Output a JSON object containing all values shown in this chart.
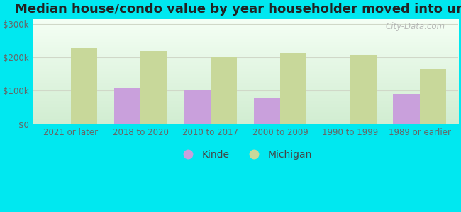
{
  "title": "Median house/condo value by year householder moved into unit",
  "categories": [
    "2021 or later",
    "2018 to 2020",
    "2010 to 2017",
    "2000 to 2009",
    "1990 to 1999",
    "1989 or earlier"
  ],
  "kinde_values": [
    null,
    110000,
    100000,
    78000,
    null,
    90000
  ],
  "michigan_values": [
    228000,
    218000,
    203000,
    213000,
    207000,
    165000
  ],
  "kinde_color": "#c9a0dc",
  "michigan_color": "#c8d89a",
  "background_outer": "#00e8f0",
  "background_inner": "#e8f5e8",
  "yticks": [
    0,
    100000,
    200000,
    300000
  ],
  "ytick_labels": [
    "$0",
    "$100k",
    "$200k",
    "$300k"
  ],
  "ylim": [
    0,
    315000
  ],
  "bar_width": 0.38,
  "title_fontsize": 13,
  "tick_fontsize": 8.5,
  "legend_fontsize": 10,
  "watermark": "City-Data.com"
}
